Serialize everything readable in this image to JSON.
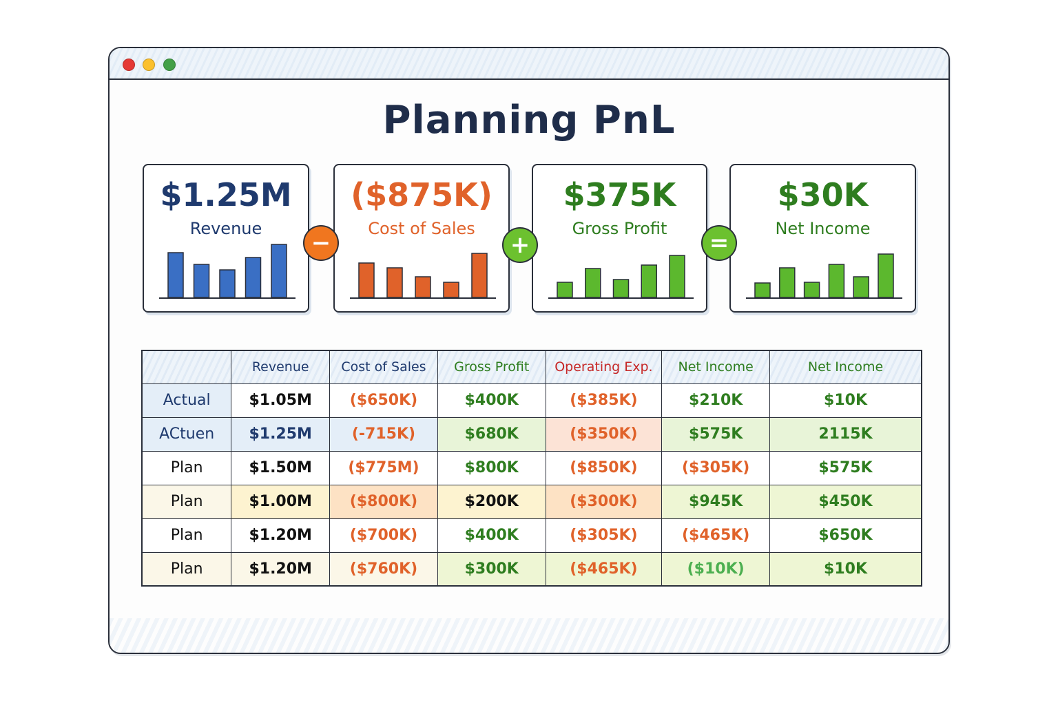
{
  "window": {
    "controls": [
      "close",
      "minimize",
      "maximize"
    ]
  },
  "title": "Planning PnL",
  "cards": [
    {
      "value": "$1.25M",
      "label": "Revenue",
      "color": "#1f3a6e",
      "bar_color": "#3a6fc4",
      "bars": [
        65,
        48,
        40,
        58,
        77
      ]
    },
    {
      "value": "($875K)",
      "label": "Cost of Sales",
      "color": "#e0622a",
      "bar_color": "#e0622a",
      "bars": [
        50,
        43,
        30,
        22,
        64
      ]
    },
    {
      "value": "$375K",
      "label": "Gross Profit",
      "color": "#2e7d1f",
      "bar_color": "#5cb82e",
      "bars": [
        22,
        42,
        26,
        47,
        61
      ]
    },
    {
      "value": "$30K",
      "label": "Net Income",
      "color": "#2e7d1f",
      "bar_color": "#5cb82e",
      "bars": [
        21,
        43,
        22,
        48,
        30,
        63
      ]
    }
  ],
  "operators": [
    {
      "symbol": "−",
      "color": "#f0761f"
    },
    {
      "symbol": "+",
      "color": "#6cc12f"
    },
    {
      "symbol": "=",
      "color": "#6cc12f"
    }
  ],
  "table": {
    "headers": [
      {
        "text": "",
        "color": "#1f3a6e"
      },
      {
        "text": "Revenue",
        "color": "#1f3a6e"
      },
      {
        "text": "Cost of Sales",
        "color": "#1f3a6e"
      },
      {
        "text": "Gross Profit",
        "color": "#2e7d1f"
      },
      {
        "text": "Operating Exp.",
        "color": "#c62828"
      },
      {
        "text": "Net Income",
        "color": "#2e7d1f"
      },
      {
        "text": "Net Income",
        "color": "#2e7d1f"
      }
    ],
    "rows": [
      {
        "label": "Actual",
        "label_style": "blue",
        "label_bg": "bg-blue",
        "cells": [
          {
            "text": "$1.05M",
            "c": "c-black",
            "bg": ""
          },
          {
            "text": "($650K)",
            "c": "c-orange",
            "bg": ""
          },
          {
            "text": "$400K",
            "c": "c-green",
            "bg": ""
          },
          {
            "text": "($385K)",
            "c": "c-orange",
            "bg": ""
          },
          {
            "text": "$210K",
            "c": "c-green",
            "bg": ""
          },
          {
            "text": "$10K",
            "c": "c-green",
            "bg": ""
          }
        ]
      },
      {
        "label": "ACtuen",
        "label_style": "blue",
        "label_bg": "bg-blue",
        "cells": [
          {
            "text": "$1.25M",
            "c": "c-blue",
            "bg": "bg-blue"
          },
          {
            "text": "(-715K)",
            "c": "c-orange",
            "bg": "bg-blue"
          },
          {
            "text": "$680K",
            "c": "c-green",
            "bg": "bg-green"
          },
          {
            "text": "($350K)",
            "c": "c-orange",
            "bg": "bg-peach"
          },
          {
            "text": "$575K",
            "c": "c-green",
            "bg": "bg-green"
          },
          {
            "text": "2115K",
            "c": "c-green",
            "bg": "bg-green"
          }
        ]
      },
      {
        "label": "Plan",
        "label_style": "",
        "label_bg": "",
        "cells": [
          {
            "text": "$1.50M",
            "c": "c-black",
            "bg": ""
          },
          {
            "text": "($775M)",
            "c": "c-orange",
            "bg": ""
          },
          {
            "text": "$800K",
            "c": "c-green",
            "bg": ""
          },
          {
            "text": "($850K)",
            "c": "c-orange",
            "bg": ""
          },
          {
            "text": "($305K)",
            "c": "c-orange",
            "bg": ""
          },
          {
            "text": "$575K",
            "c": "c-green",
            "bg": ""
          }
        ]
      },
      {
        "label": "Plan",
        "label_style": "",
        "label_bg": "bg-cream",
        "cells": [
          {
            "text": "$1.00M",
            "c": "c-black",
            "bg": "bg-yellow"
          },
          {
            "text": "($800K)",
            "c": "c-orange",
            "bg": "bg-orange"
          },
          {
            "text": "$200K",
            "c": "c-black",
            "bg": "bg-yellow"
          },
          {
            "text": "($300K)",
            "c": "c-orange",
            "bg": "bg-orange"
          },
          {
            "text": "$945K",
            "c": "c-green",
            "bg": "bg-lime"
          },
          {
            "text": "$450K",
            "c": "c-green",
            "bg": "bg-lime"
          }
        ]
      },
      {
        "label": "Plan",
        "label_style": "",
        "label_bg": "",
        "cells": [
          {
            "text": "$1.20M",
            "c": "c-black",
            "bg": ""
          },
          {
            "text": "($700K)",
            "c": "c-orange",
            "bg": ""
          },
          {
            "text": "$400K",
            "c": "c-green",
            "bg": ""
          },
          {
            "text": "($305K)",
            "c": "c-orange",
            "bg": ""
          },
          {
            "text": "($465K)",
            "c": "c-orange",
            "bg": ""
          },
          {
            "text": "$650K",
            "c": "c-green",
            "bg": ""
          }
        ]
      },
      {
        "label": "Plan",
        "label_style": "",
        "label_bg": "bg-cream",
        "cells": [
          {
            "text": "$1.20M",
            "c": "c-black",
            "bg": "bg-cream"
          },
          {
            "text": "($760K)",
            "c": "c-orange",
            "bg": "bg-cream"
          },
          {
            "text": "$300K",
            "c": "c-green",
            "bg": "bg-lime"
          },
          {
            "text": "($465K)",
            "c": "c-orange",
            "bg": "bg-lime"
          },
          {
            "text": "($10K)",
            "c": "c-lightgreen",
            "bg": "bg-lime"
          },
          {
            "text": "$10K",
            "c": "c-green",
            "bg": "bg-lime"
          }
        ]
      }
    ]
  }
}
